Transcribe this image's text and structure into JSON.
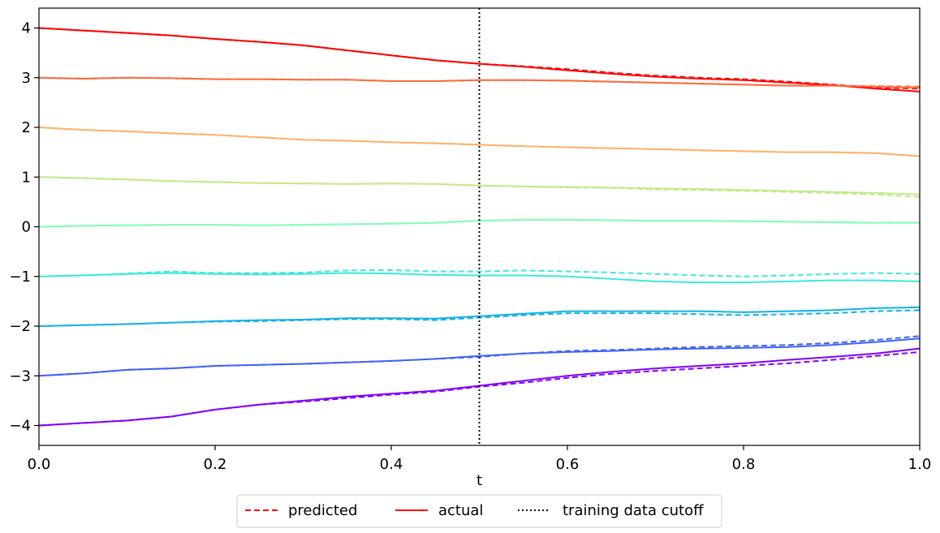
{
  "chart_data": {
    "type": "line",
    "title": "",
    "xlabel": "t",
    "ylabel": "",
    "xlim": [
      0.0,
      1.0
    ],
    "ylim": [
      -4.4,
      4.4
    ],
    "xticks": [
      0.0,
      0.2,
      0.4,
      0.6,
      0.8,
      1.0
    ],
    "xtick_labels": [
      "0.0",
      "0.2",
      "0.4",
      "0.6",
      "0.8",
      "1.0"
    ],
    "yticks": [
      4,
      3,
      2,
      1,
      0,
      -1,
      -2,
      -3,
      -4
    ],
    "ytick_labels": [
      "4",
      "3",
      "2",
      "1",
      "0",
      "−1",
      "−2",
      "−3",
      "−4"
    ],
    "grid": false,
    "vline": {
      "x": 0.5,
      "style": "dotted",
      "color": "#000000"
    },
    "x": [
      0.0,
      0.05,
      0.1,
      0.15,
      0.2,
      0.25,
      0.3,
      0.35,
      0.4,
      0.45,
      0.5,
      0.55,
      0.6,
      0.65,
      0.7,
      0.75,
      0.8,
      0.85,
      0.9,
      0.95,
      1.0
    ],
    "series": [
      {
        "color": "#ff0000",
        "actual": [
          4.0,
          3.95,
          3.9,
          3.85,
          3.78,
          3.72,
          3.65,
          3.55,
          3.45,
          3.35,
          3.28,
          3.22,
          3.15,
          3.08,
          3.02,
          2.98,
          2.95,
          2.9,
          2.85,
          2.78,
          2.72
        ],
        "predicted": [
          4.0,
          3.95,
          3.9,
          3.85,
          3.78,
          3.72,
          3.65,
          3.55,
          3.45,
          3.35,
          3.28,
          3.23,
          3.17,
          3.1,
          3.04,
          3.0,
          2.97,
          2.92,
          2.86,
          2.8,
          2.78
        ]
      },
      {
        "color": "#ff6a3a",
        "actual": [
          3.0,
          2.98,
          3.0,
          2.99,
          2.97,
          2.97,
          2.96,
          2.96,
          2.93,
          2.93,
          2.95,
          2.95,
          2.94,
          2.92,
          2.9,
          2.88,
          2.86,
          2.84,
          2.84,
          2.82,
          2.8
        ],
        "predicted": [
          3.0,
          2.98,
          3.0,
          2.99,
          2.97,
          2.97,
          2.96,
          2.96,
          2.93,
          2.93,
          2.95,
          2.95,
          2.94,
          2.92,
          2.9,
          2.88,
          2.86,
          2.84,
          2.84,
          2.83,
          2.82
        ]
      },
      {
        "color": "#ffb26a",
        "actual": [
          2.0,
          1.95,
          1.92,
          1.88,
          1.85,
          1.8,
          1.75,
          1.73,
          1.7,
          1.68,
          1.65,
          1.62,
          1.6,
          1.58,
          1.56,
          1.54,
          1.52,
          1.5,
          1.5,
          1.48,
          1.42
        ],
        "predicted": [
          2.0,
          1.95,
          1.92,
          1.88,
          1.85,
          1.8,
          1.75,
          1.73,
          1.7,
          1.68,
          1.65,
          1.62,
          1.6,
          1.58,
          1.56,
          1.54,
          1.52,
          1.5,
          1.5,
          1.48,
          1.42
        ]
      },
      {
        "color": "#c0eb8a",
        "actual": [
          1.0,
          0.98,
          0.95,
          0.92,
          0.9,
          0.88,
          0.87,
          0.86,
          0.87,
          0.86,
          0.83,
          0.81,
          0.8,
          0.79,
          0.77,
          0.76,
          0.74,
          0.72,
          0.7,
          0.68,
          0.65
        ],
        "predicted": [
          1.0,
          0.98,
          0.95,
          0.92,
          0.9,
          0.88,
          0.87,
          0.86,
          0.87,
          0.86,
          0.83,
          0.81,
          0.79,
          0.78,
          0.75,
          0.74,
          0.72,
          0.7,
          0.68,
          0.65,
          0.6
        ]
      },
      {
        "color": "#80ffb4",
        "actual": [
          0.0,
          0.02,
          0.03,
          0.04,
          0.04,
          0.03,
          0.04,
          0.05,
          0.06,
          0.08,
          0.12,
          0.14,
          0.14,
          0.13,
          0.12,
          0.12,
          0.11,
          0.1,
          0.09,
          0.08,
          0.08
        ],
        "predicted": [
          0.0,
          0.02,
          0.03,
          0.04,
          0.04,
          0.03,
          0.04,
          0.05,
          0.06,
          0.08,
          0.12,
          0.14,
          0.14,
          0.13,
          0.12,
          0.12,
          0.11,
          0.1,
          0.09,
          0.08,
          0.08
        ]
      },
      {
        "color": "#3aeadc",
        "actual": [
          -1.0,
          -0.98,
          -0.95,
          -0.93,
          -0.95,
          -0.96,
          -0.95,
          -0.93,
          -0.94,
          -0.97,
          -0.98,
          -0.98,
          -1.0,
          -1.05,
          -1.1,
          -1.12,
          -1.12,
          -1.1,
          -1.08,
          -1.08,
          -1.1
        ],
        "predicted": [
          -1.0,
          -0.98,
          -0.94,
          -0.9,
          -0.93,
          -0.93,
          -0.92,
          -0.88,
          -0.87,
          -0.9,
          -0.9,
          -0.88,
          -0.9,
          -0.92,
          -0.95,
          -0.98,
          -1.0,
          -0.98,
          -0.95,
          -0.93,
          -0.95
        ]
      },
      {
        "color": "#14b1e6",
        "actual": [
          -2.0,
          -1.98,
          -1.96,
          -1.93,
          -1.9,
          -1.88,
          -1.87,
          -1.84,
          -1.84,
          -1.85,
          -1.8,
          -1.75,
          -1.7,
          -1.7,
          -1.7,
          -1.7,
          -1.72,
          -1.7,
          -1.68,
          -1.64,
          -1.62
        ],
        "predicted": [
          -2.0,
          -1.98,
          -1.96,
          -1.93,
          -1.91,
          -1.9,
          -1.88,
          -1.86,
          -1.86,
          -1.88,
          -1.83,
          -1.78,
          -1.74,
          -1.74,
          -1.74,
          -1.76,
          -1.78,
          -1.76,
          -1.74,
          -1.7,
          -1.68
        ]
      },
      {
        "color": "#4062fa",
        "actual": [
          -3.0,
          -2.95,
          -2.88,
          -2.85,
          -2.8,
          -2.78,
          -2.76,
          -2.73,
          -2.7,
          -2.66,
          -2.6,
          -2.55,
          -2.52,
          -2.5,
          -2.47,
          -2.45,
          -2.44,
          -2.42,
          -2.38,
          -2.32,
          -2.25
        ],
        "predicted": [
          -3.0,
          -2.95,
          -2.88,
          -2.85,
          -2.8,
          -2.78,
          -2.76,
          -2.73,
          -2.7,
          -2.66,
          -2.62,
          -2.55,
          -2.5,
          -2.48,
          -2.45,
          -2.42,
          -2.4,
          -2.38,
          -2.34,
          -2.28,
          -2.2
        ]
      },
      {
        "color": "#8000ff",
        "actual": [
          -4.0,
          -3.95,
          -3.9,
          -3.82,
          -3.68,
          -3.58,
          -3.5,
          -3.42,
          -3.36,
          -3.3,
          -3.2,
          -3.1,
          -3.0,
          -2.92,
          -2.85,
          -2.8,
          -2.75,
          -2.68,
          -2.62,
          -2.55,
          -2.45
        ],
        "predicted": [
          -4.0,
          -3.95,
          -3.9,
          -3.82,
          -3.68,
          -3.58,
          -3.52,
          -3.45,
          -3.38,
          -3.32,
          -3.22,
          -3.14,
          -3.04,
          -2.96,
          -2.9,
          -2.85,
          -2.8,
          -2.75,
          -2.68,
          -2.6,
          -2.52
        ]
      }
    ],
    "legend": {
      "placement": "bottom-center",
      "entries": [
        {
          "label": "predicted",
          "style": "dashed",
          "color": "#ff0000"
        },
        {
          "label": "actual",
          "style": "solid",
          "color": "#ff0000"
        },
        {
          "label": "training data cutoff",
          "style": "dotted",
          "color": "#000000"
        }
      ]
    }
  }
}
